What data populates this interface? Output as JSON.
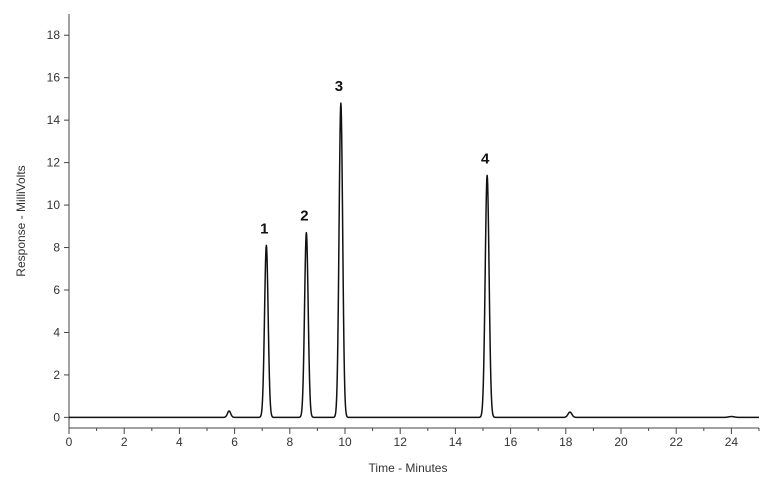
{
  "chart_data": {
    "type": "line",
    "title": "",
    "xlabel": "Time - Minutes",
    "ylabel": "Response - MilliVolts",
    "xlim": [
      0,
      25
    ],
    "ylim": [
      -0.5,
      19
    ],
    "xticks": [
      0,
      2,
      4,
      6,
      8,
      10,
      12,
      14,
      16,
      18,
      20,
      22,
      24
    ],
    "yticks": [
      0,
      2,
      4,
      6,
      8,
      10,
      12,
      14,
      16,
      18
    ],
    "grid": false,
    "legend": "none",
    "line_color": "#111111",
    "baseline": 0.0,
    "peaks": [
      {
        "label": "",
        "rt": 5.8,
        "height": 0.3,
        "width": 0.06
      },
      {
        "label": "1",
        "rt": 7.15,
        "height": 8.1,
        "width": 0.065
      },
      {
        "label": "2",
        "rt": 8.6,
        "height": 8.7,
        "width": 0.065
      },
      {
        "label": "3",
        "rt": 9.85,
        "height": 14.8,
        "width": 0.065
      },
      {
        "label": "4",
        "rt": 15.15,
        "height": 11.4,
        "width": 0.07
      },
      {
        "label": "",
        "rt": 18.15,
        "height": 0.25,
        "width": 0.07
      },
      {
        "label": "",
        "rt": 24.0,
        "height": 0.04,
        "width": 0.1
      }
    ]
  }
}
